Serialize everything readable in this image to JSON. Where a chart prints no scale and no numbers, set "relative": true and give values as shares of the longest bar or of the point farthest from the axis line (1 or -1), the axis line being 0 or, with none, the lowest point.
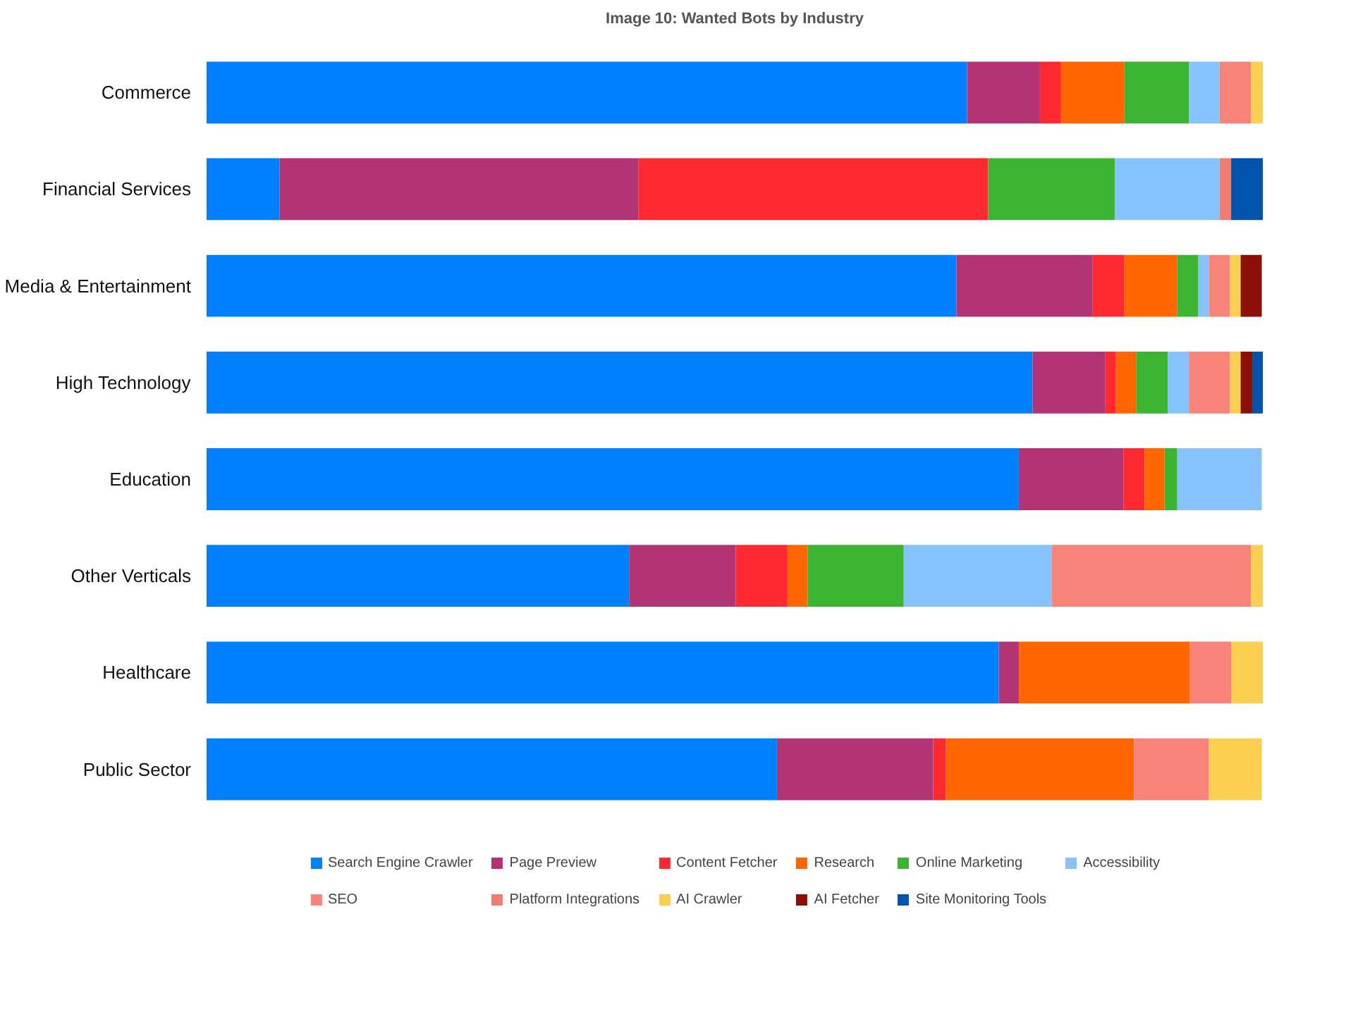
{
  "chart_data": {
    "type": "bar",
    "orientation": "horizontal",
    "stacked": true,
    "relative": true,
    "title": "Image 10: Wanted Bots by Industry",
    "categories": [
      "Commerce",
      "Financial Services",
      "Media & Entertainment",
      "High Technology",
      "Education",
      "Other Verticals",
      "Healthcare",
      "Public Sector"
    ],
    "series": [
      {
        "name": "Search Engine Crawler",
        "color": "#0080ff",
        "values": [
          0.72,
          0.069,
          0.71,
          0.782,
          0.769,
          0.4,
          0.75,
          0.54
        ]
      },
      {
        "name": "Page Preview",
        "color": "#b33474",
        "values": [
          0.069,
          0.34,
          0.129,
          0.069,
          0.099,
          0.101,
          0.019,
          0.148
        ]
      },
      {
        "name": "Content Fetcher",
        "color": "#ff2a31",
        "values": [
          0.02,
          0.331,
          0.03,
          0.01,
          0.02,
          0.049,
          0,
          0.012
        ]
      },
      {
        "name": "Research",
        "color": "#ff6600",
        "values": [
          0.06,
          0,
          0.05,
          0.019,
          0.019,
          0.019,
          0.162,
          0.178
        ]
      },
      {
        "name": "Online Marketing",
        "color": "#3bb431",
        "values": [
          0.061,
          0.12,
          0.02,
          0.03,
          0.012,
          0.091,
          0,
          0
        ]
      },
      {
        "name": "Accessibility",
        "color": "#85c2ff",
        "values": [
          0.029,
          0.099,
          0.01,
          0.02,
          0.08,
          0.14,
          0,
          0
        ]
      },
      {
        "name": "SEO",
        "color": "#f88379",
        "values": [
          0.03,
          0,
          0.02,
          0.039,
          0,
          0.189,
          0.039,
          0.071
        ]
      },
      {
        "name": "Platform Integrations",
        "color": "#ee7d74",
        "values": [
          0,
          0.011,
          0,
          0,
          0,
          0,
          0,
          0
        ]
      },
      {
        "name": "AI Crawler",
        "color": "#fbd051",
        "values": [
          0.011,
          0,
          0.01,
          0.01,
          0,
          0.011,
          0.03,
          0.05
        ]
      },
      {
        "name": "AI Fetcher",
        "color": "#8b0f07",
        "values": [
          0,
          0,
          0.02,
          0.011,
          0,
          0,
          0,
          0
        ]
      },
      {
        "name": "Site Monitoring Tools",
        "color": "#0054ab",
        "values": [
          0,
          0.03,
          0,
          0.01,
          0,
          0,
          0,
          0
        ]
      }
    ],
    "legend": "bottom",
    "grid": false
  }
}
